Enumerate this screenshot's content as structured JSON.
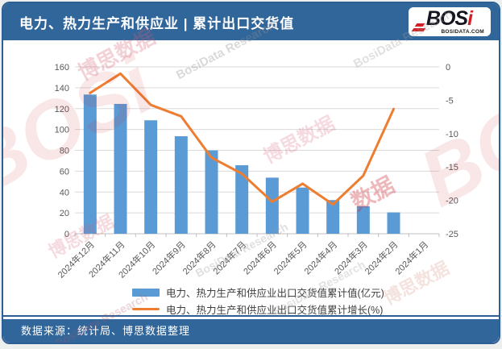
{
  "header": {
    "title": "电力、热力生产和供应业 | 累计出口交货值"
  },
  "logo": {
    "text_main": "BOS",
    "text_accent": "i",
    "domain": "BOSIDATA.COM"
  },
  "colors": {
    "header_bg": "#31669B",
    "footer_bg": "#31669B",
    "bar": "#5B9BD5",
    "line": "#ED7D31",
    "logo_red": "#D22027",
    "logo_dark": "#15151F",
    "axis_text": "#595959",
    "gridline": "#D9D9D9",
    "axis_line": "#BFBFBF"
  },
  "chart_data": {
    "type": "bar",
    "subtype": "combo-bar-line",
    "title": "电力、热力生产和供应业 | 累计出口交货值",
    "categories": [
      "2024年12月",
      "2024年11月",
      "2024年10月",
      "2024年9月",
      "2024年8月",
      "2024年7月",
      "2024年6月",
      "2024年5月",
      "2024年4月",
      "2024年3月",
      "2024年2月",
      "2024年1月"
    ],
    "series": [
      {
        "name": "电力、热力生产和供应业出口交货值累计值(亿元)",
        "type": "bar",
        "axis": "left",
        "color": "#5B9BD5",
        "values": [
          133.5,
          124.5,
          108.8,
          93.5,
          79.9,
          65.7,
          53.8,
          44.3,
          32.3,
          26.3,
          20.5,
          null
        ]
      },
      {
        "name": "电力、热力生产和供应业出口交货值累计增长(%)",
        "type": "line",
        "axis": "right",
        "color": "#ED7D31",
        "values": [
          -3.9,
          -1.0,
          -5.7,
          -7.4,
          -13.6,
          -16.0,
          -20.2,
          -17.5,
          -20.6,
          -16.3,
          -6.3,
          null
        ]
      }
    ],
    "left_axis": {
      "min": 0,
      "max": 160,
      "step": 20
    },
    "right_axis": {
      "min": -25,
      "max": 0,
      "step": 5
    },
    "grid": true,
    "legend_position": "bottom",
    "xlabel": "",
    "ylabel_left": "亿元",
    "ylabel_right": "%"
  },
  "watermark": {
    "texts": [
      "BOSi",
      "博思数据",
      "BosiData Research",
      "数据"
    ]
  },
  "footer": {
    "source": "数据来源：统计局、博思数据整理"
  }
}
